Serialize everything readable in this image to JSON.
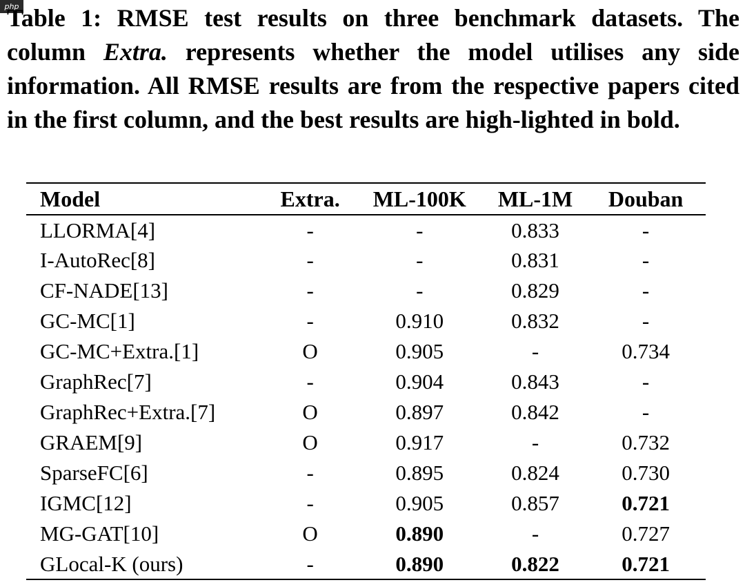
{
  "watermark": "php",
  "caption": {
    "part1": "Table 1: RMSE test results on three benchmark datasets. The column ",
    "emph": "Extra.",
    "part2": " represents whether the model utilises any side information. All RMSE results are from the respective papers cited in the first column, and the best results are high-lighted in bold."
  },
  "table": {
    "headers": [
      "Model",
      "Extra.",
      "ML-100K",
      "ML-1M",
      "Douban"
    ],
    "rows": [
      {
        "model": "LLORMA[4]",
        "extra": "-",
        "ml100k": "-",
        "ml1m": "0.833",
        "douban": "-",
        "bold": []
      },
      {
        "model": "I-AutoRec[8]",
        "extra": "-",
        "ml100k": "-",
        "ml1m": "0.831",
        "douban": "-",
        "bold": []
      },
      {
        "model": "CF-NADE[13]",
        "extra": "-",
        "ml100k": "-",
        "ml1m": "0.829",
        "douban": "-",
        "bold": []
      },
      {
        "model": "GC-MC[1]",
        "extra": "-",
        "ml100k": "0.910",
        "ml1m": "0.832",
        "douban": "-",
        "bold": []
      },
      {
        "model": "GC-MC+Extra.[1]",
        "extra": "O",
        "ml100k": "0.905",
        "ml1m": "-",
        "douban": "0.734",
        "bold": []
      },
      {
        "model": "GraphRec[7]",
        "extra": "-",
        "ml100k": "0.904",
        "ml1m": "0.843",
        "douban": "-",
        "bold": []
      },
      {
        "model": "GraphRec+Extra.[7]",
        "extra": "O",
        "ml100k": "0.897",
        "ml1m": "0.842",
        "douban": "-",
        "bold": []
      },
      {
        "model": "GRAEM[9]",
        "extra": "O",
        "ml100k": "0.917",
        "ml1m": "-",
        "douban": "0.732",
        "bold": []
      },
      {
        "model": "SparseFC[6]",
        "extra": "-",
        "ml100k": "0.895",
        "ml1m": "0.824",
        "douban": "0.730",
        "bold": []
      },
      {
        "model": "IGMC[12]",
        "extra": "-",
        "ml100k": "0.905",
        "ml1m": "0.857",
        "douban": "0.721",
        "bold": [
          "douban"
        ]
      },
      {
        "model": "MG-GAT[10]",
        "extra": "O",
        "ml100k": "0.890",
        "ml1m": "-",
        "douban": "0.727",
        "bold": [
          "ml100k"
        ]
      },
      {
        "model": "GLocal-K (ours)",
        "extra": "-",
        "ml100k": "0.890",
        "ml1m": "0.822",
        "douban": "0.721",
        "bold": [
          "ml100k",
          "ml1m",
          "douban"
        ]
      }
    ]
  }
}
